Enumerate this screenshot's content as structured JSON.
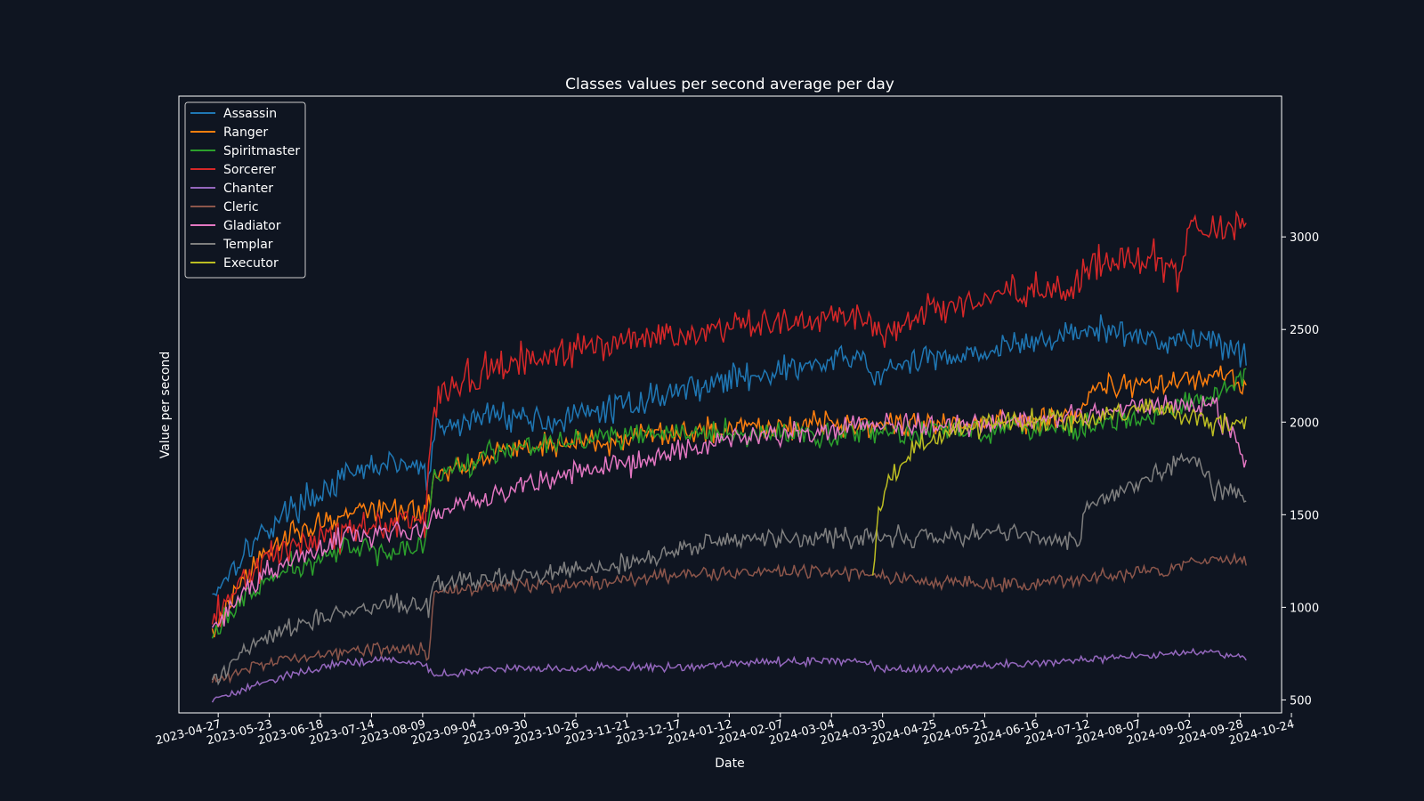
{
  "chart_data": {
    "type": "line",
    "title": "Classes values per second average per day",
    "xlabel": "Date",
    "ylabel": "Value per second",
    "x_start": "2023-04-24",
    "x_end": "2024-10-01",
    "xlim": [
      "2023-04-07",
      "2024-10-19"
    ],
    "ylim": [
      430,
      3760
    ],
    "y_axis_position": "right",
    "x_ticks": [
      "2023-04-27",
      "2023-05-23",
      "2023-06-18",
      "2023-07-14",
      "2023-08-09",
      "2023-09-04",
      "2023-09-30",
      "2023-10-26",
      "2023-11-21",
      "2023-12-17",
      "2024-01-12",
      "2024-02-07",
      "2024-03-04",
      "2024-03-30",
      "2024-04-25",
      "2024-05-21",
      "2024-06-16",
      "2024-07-12",
      "2024-08-07",
      "2024-09-02",
      "2024-09-28",
      "2024-10-24"
    ],
    "y_ticks": [
      500,
      1000,
      1500,
      2000,
      2500,
      3000
    ],
    "legend_position": "top-left",
    "grid": false,
    "colors": {
      "background": "#0f1521",
      "axes": "#ffffff"
    },
    "series": [
      {
        "name": "Assassin",
        "color": "#1f77b4",
        "anchors": [
          [
            "2023-04-24",
            1070
          ],
          [
            "2023-05-10",
            1300
          ],
          [
            "2023-06-01",
            1520
          ],
          [
            "2023-07-01",
            1700
          ],
          [
            "2023-07-20",
            1780
          ],
          [
            "2023-08-10",
            1750
          ],
          [
            "2023-08-12",
            1650
          ],
          [
            "2023-08-15",
            1950
          ],
          [
            "2023-09-15",
            2050
          ],
          [
            "2023-10-15",
            2000
          ],
          [
            "2023-11-15",
            2080
          ],
          [
            "2023-12-20",
            2180
          ],
          [
            "2024-01-20",
            2250
          ],
          [
            "2024-02-20",
            2300
          ],
          [
            "2024-03-20",
            2350
          ],
          [
            "2024-03-25",
            2250
          ],
          [
            "2024-04-25",
            2350
          ],
          [
            "2024-06-01",
            2400
          ],
          [
            "2024-07-15",
            2500
          ],
          [
            "2024-08-15",
            2450
          ],
          [
            "2024-09-15",
            2450
          ],
          [
            "2024-10-01",
            2350
          ]
        ]
      },
      {
        "name": "Ranger",
        "color": "#ff7f0e",
        "anchors": [
          [
            "2023-04-24",
            860
          ],
          [
            "2023-05-10",
            1150
          ],
          [
            "2023-06-01",
            1400
          ],
          [
            "2023-07-01",
            1500
          ],
          [
            "2023-07-20",
            1540
          ],
          [
            "2023-08-10",
            1500
          ],
          [
            "2023-08-15",
            1700
          ],
          [
            "2023-09-15",
            1850
          ],
          [
            "2023-10-15",
            1880
          ],
          [
            "2023-11-15",
            1900
          ],
          [
            "2023-12-20",
            1950
          ],
          [
            "2024-01-20",
            1980
          ],
          [
            "2024-02-20",
            1990
          ],
          [
            "2024-03-20",
            2000
          ],
          [
            "2024-04-25",
            1980
          ],
          [
            "2024-06-01",
            2000
          ],
          [
            "2024-07-10",
            2050
          ],
          [
            "2024-07-15",
            2200
          ],
          [
            "2024-08-15",
            2200
          ],
          [
            "2024-09-15",
            2250
          ],
          [
            "2024-10-01",
            2200
          ]
        ]
      },
      {
        "name": "Spiritmaster",
        "color": "#2ca02c",
        "anchors": [
          [
            "2023-04-24",
            850
          ],
          [
            "2023-05-10",
            1050
          ],
          [
            "2023-06-01",
            1200
          ],
          [
            "2023-07-01",
            1310
          ],
          [
            "2023-08-10",
            1320
          ],
          [
            "2023-08-15",
            1700
          ],
          [
            "2023-09-15",
            1850
          ],
          [
            "2023-10-15",
            1900
          ],
          [
            "2023-11-15",
            1920
          ],
          [
            "2023-12-20",
            1940
          ],
          [
            "2024-01-20",
            1930
          ],
          [
            "2024-02-20",
            1930
          ],
          [
            "2024-03-20",
            1950
          ],
          [
            "2024-04-25",
            1950
          ],
          [
            "2024-06-01",
            1980
          ],
          [
            "2024-07-15",
            1980
          ],
          [
            "2024-08-15",
            2030
          ],
          [
            "2024-09-15",
            2150
          ],
          [
            "2024-10-01",
            2250
          ]
        ]
      },
      {
        "name": "Sorcerer",
        "color": "#d62728",
        "anchors": [
          [
            "2023-04-24",
            900
          ],
          [
            "2023-05-10",
            1150
          ],
          [
            "2023-06-01",
            1320
          ],
          [
            "2023-07-01",
            1420
          ],
          [
            "2023-08-10",
            1480
          ],
          [
            "2023-08-15",
            2100
          ],
          [
            "2023-09-01",
            2250
          ],
          [
            "2023-10-01",
            2330
          ],
          [
            "2023-11-01",
            2400
          ],
          [
            "2023-12-15",
            2480
          ],
          [
            "2024-01-15",
            2520
          ],
          [
            "2024-02-15",
            2540
          ],
          [
            "2024-03-15",
            2560
          ],
          [
            "2024-03-30",
            2480
          ],
          [
            "2024-04-25",
            2600
          ],
          [
            "2024-05-21",
            2680
          ],
          [
            "2024-06-16",
            2720
          ],
          [
            "2024-07-05",
            2700
          ],
          [
            "2024-07-15",
            2850
          ],
          [
            "2024-08-07",
            2900
          ],
          [
            "2024-08-28",
            2800
          ],
          [
            "2024-09-02",
            3050
          ],
          [
            "2024-10-01",
            3060
          ]
        ]
      },
      {
        "name": "Chanter",
        "color": "#9467bd",
        "anchors": [
          [
            "2023-04-24",
            500
          ],
          [
            "2023-05-10",
            560
          ],
          [
            "2023-06-01",
            640
          ],
          [
            "2023-07-01",
            700
          ],
          [
            "2023-07-20",
            720
          ],
          [
            "2023-08-10",
            700
          ],
          [
            "2023-08-15",
            630
          ],
          [
            "2023-09-15",
            670
          ],
          [
            "2023-10-15",
            670
          ],
          [
            "2023-11-15",
            670
          ],
          [
            "2023-12-20",
            680
          ],
          [
            "2024-01-20",
            700
          ],
          [
            "2024-02-20",
            710
          ],
          [
            "2024-03-20",
            710
          ],
          [
            "2024-04-01",
            660
          ],
          [
            "2024-05-01",
            670
          ],
          [
            "2024-06-01",
            690
          ],
          [
            "2024-07-15",
            720
          ],
          [
            "2024-08-15",
            740
          ],
          [
            "2024-09-15",
            760
          ],
          [
            "2024-10-01",
            720
          ]
        ]
      },
      {
        "name": "Cleric",
        "color": "#8c564b",
        "anchors": [
          [
            "2023-04-24",
            600
          ],
          [
            "2023-05-10",
            660
          ],
          [
            "2023-06-01",
            720
          ],
          [
            "2023-07-01",
            760
          ],
          [
            "2023-07-20",
            780
          ],
          [
            "2023-08-10",
            770
          ],
          [
            "2023-08-12",
            740
          ],
          [
            "2023-08-15",
            1080
          ],
          [
            "2023-09-15",
            1110
          ],
          [
            "2023-10-15",
            1120
          ],
          [
            "2023-11-15",
            1140
          ],
          [
            "2023-12-20",
            1180
          ],
          [
            "2024-01-20",
            1190
          ],
          [
            "2024-02-20",
            1190
          ],
          [
            "2024-03-20",
            1180
          ],
          [
            "2024-04-25",
            1140
          ],
          [
            "2024-06-01",
            1120
          ],
          [
            "2024-07-15",
            1160
          ],
          [
            "2024-08-15",
            1200
          ],
          [
            "2024-09-15",
            1260
          ],
          [
            "2024-10-01",
            1250
          ]
        ]
      },
      {
        "name": "Gladiator",
        "color": "#e377c2",
        "anchors": [
          [
            "2023-04-24",
            880
          ],
          [
            "2023-05-10",
            1080
          ],
          [
            "2023-06-01",
            1250
          ],
          [
            "2023-07-01",
            1380
          ],
          [
            "2023-08-10",
            1430
          ],
          [
            "2023-08-12",
            1480
          ],
          [
            "2023-08-15",
            1520
          ],
          [
            "2023-09-15",
            1620
          ],
          [
            "2023-10-15",
            1700
          ],
          [
            "2023-11-15",
            1760
          ],
          [
            "2023-12-20",
            1850
          ],
          [
            "2024-01-20",
            1920
          ],
          [
            "2024-02-20",
            1940
          ],
          [
            "2024-03-20",
            1980
          ],
          [
            "2024-04-25",
            1990
          ],
          [
            "2024-06-01",
            2000
          ],
          [
            "2024-07-15",
            2050
          ],
          [
            "2024-08-15",
            2100
          ],
          [
            "2024-09-15",
            2080
          ],
          [
            "2024-09-28",
            1850
          ],
          [
            "2024-10-01",
            1800
          ]
        ]
      },
      {
        "name": "Templar",
        "color": "#7f7f7f",
        "anchors": [
          [
            "2023-04-24",
            580
          ],
          [
            "2023-05-10",
            760
          ],
          [
            "2023-06-01",
            880
          ],
          [
            "2023-07-01",
            980
          ],
          [
            "2023-08-10",
            1020
          ],
          [
            "2023-08-12",
            960
          ],
          [
            "2023-08-15",
            1120
          ],
          [
            "2023-09-15",
            1150
          ],
          [
            "2023-10-15",
            1180
          ],
          [
            "2023-11-15",
            1230
          ],
          [
            "2023-12-20",
            1330
          ],
          [
            "2024-01-20",
            1370
          ],
          [
            "2024-02-20",
            1370
          ],
          [
            "2024-03-20",
            1380
          ],
          [
            "2024-04-25",
            1380
          ],
          [
            "2024-06-01",
            1400
          ],
          [
            "2024-07-08",
            1350
          ],
          [
            "2024-07-12",
            1550
          ],
          [
            "2024-08-15",
            1720
          ],
          [
            "2024-09-02",
            1800
          ],
          [
            "2024-09-15",
            1650
          ],
          [
            "2024-10-01",
            1600
          ]
        ]
      },
      {
        "name": "Executor",
        "color": "#bcbd22",
        "anchors": [
          [
            "2024-03-25",
            1180
          ],
          [
            "2024-03-28",
            1520
          ],
          [
            "2024-04-02",
            1680
          ],
          [
            "2024-04-15",
            1850
          ],
          [
            "2024-05-01",
            1950
          ],
          [
            "2024-06-01",
            2000
          ],
          [
            "2024-07-15",
            2020
          ],
          [
            "2024-08-15",
            2080
          ],
          [
            "2024-09-15",
            2000
          ],
          [
            "2024-10-01",
            2000
          ]
        ]
      }
    ]
  }
}
